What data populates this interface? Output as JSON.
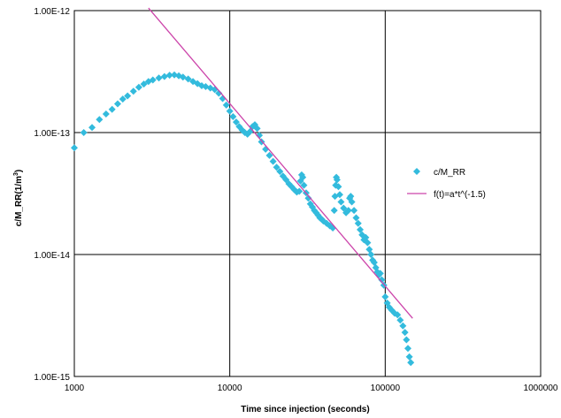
{
  "chart_data": {
    "type": "scatter",
    "xlabel": "Time since injection (seconds)",
    "ylabel": "c/M_RR(1/m",
    "ylabel_sup": "3",
    "ylabel_close": ")",
    "x_scale": "log",
    "y_scale": "log",
    "xlim": [
      1000,
      1000000
    ],
    "ylim": [
      1e-15,
      1e-12
    ],
    "x_tick_values": [
      1000,
      10000,
      100000,
      1000000
    ],
    "x_tick_labels": [
      "1000",
      "10000",
      "100000",
      "1000000"
    ],
    "y_tick_values": [
      1e-15,
      1e-14,
      1e-13,
      1e-12
    ],
    "y_tick_labels": [
      "1.00E-15",
      "1.00E-14",
      "1.00E-13",
      "1.00E-12"
    ],
    "grid": true,
    "legend_position": "right",
    "series": [
      {
        "name": "c/M_RR",
        "marker": "diamond",
        "color": "#33BBDD",
        "points": [
          [
            1000,
            7.5e-14
          ],
          [
            1150,
            1e-13
          ],
          [
            1300,
            1.1e-13
          ],
          [
            1450,
            1.28e-13
          ],
          [
            1600,
            1.42e-13
          ],
          [
            1750,
            1.55e-13
          ],
          [
            1900,
            1.72e-13
          ],
          [
            2050,
            1.88e-13
          ],
          [
            2200,
            2e-13
          ],
          [
            2400,
            2.18e-13
          ],
          [
            2600,
            2.35e-13
          ],
          [
            2800,
            2.5e-13
          ],
          [
            3000,
            2.62e-13
          ],
          [
            3200,
            2.7e-13
          ],
          [
            3500,
            2.8e-13
          ],
          [
            3800,
            2.88e-13
          ],
          [
            4100,
            2.95e-13
          ],
          [
            4400,
            2.97e-13
          ],
          [
            4700,
            2.92e-13
          ],
          [
            5000,
            2.85e-13
          ],
          [
            5400,
            2.75e-13
          ],
          [
            5800,
            2.62e-13
          ],
          [
            6200,
            2.52e-13
          ],
          [
            6600,
            2.42e-13
          ],
          [
            7000,
            2.38e-13
          ],
          [
            7500,
            2.32e-13
          ],
          [
            8000,
            2.25e-13
          ],
          [
            8500,
            2.1e-13
          ],
          [
            9000,
            1.9e-13
          ],
          [
            9500,
            1.68e-13
          ],
          [
            10000,
            1.5e-13
          ],
          [
            10500,
            1.35e-13
          ],
          [
            11000,
            1.22e-13
          ],
          [
            11500,
            1.12e-13
          ],
          [
            12000,
            1.05e-13
          ],
          [
            12500,
            1e-13
          ],
          [
            13000,
            9.7e-14
          ],
          [
            13500,
            1.02e-13
          ],
          [
            14000,
            1.12e-13
          ],
          [
            14500,
            1.16e-13
          ],
          [
            15000,
            1.08e-13
          ],
          [
            15500,
            9.5e-14
          ],
          [
            16000,
            8.4e-14
          ],
          [
            17000,
            7.3e-14
          ],
          [
            18000,
            6.5e-14
          ],
          [
            19000,
            5.8e-14
          ],
          [
            20000,
            5.2e-14
          ],
          [
            21000,
            4.8e-14
          ],
          [
            22000,
            4.4e-14
          ],
          [
            23000,
            4.1e-14
          ],
          [
            24000,
            3.8e-14
          ],
          [
            25000,
            3.6e-14
          ],
          [
            26000,
            3.4e-14
          ],
          [
            27000,
            3.25e-14
          ],
          [
            28000,
            3.3e-14
          ],
          [
            28500,
            4e-14
          ],
          [
            29000,
            4.5e-14
          ],
          [
            29500,
            4.3e-14
          ],
          [
            30000,
            3.7e-14
          ],
          [
            31000,
            3.2e-14
          ],
          [
            32000,
            2.9e-14
          ],
          [
            33000,
            2.6e-14
          ],
          [
            34000,
            2.45e-14
          ],
          [
            35000,
            2.3e-14
          ],
          [
            36000,
            2.2e-14
          ],
          [
            37000,
            2.1e-14
          ],
          [
            38000,
            2e-14
          ],
          [
            39000,
            1.95e-14
          ],
          [
            40000,
            1.88e-14
          ],
          [
            42000,
            1.8e-14
          ],
          [
            44000,
            1.72e-14
          ],
          [
            46000,
            1.65e-14
          ],
          [
            47000,
            2.3e-14
          ],
          [
            47500,
            3e-14
          ],
          [
            48000,
            3.7e-14
          ],
          [
            48500,
            4.3e-14
          ],
          [
            49000,
            4.1e-14
          ],
          [
            50000,
            3.6e-14
          ],
          [
            51000,
            3.1e-14
          ],
          [
            52000,
            2.7e-14
          ],
          [
            54000,
            2.4e-14
          ],
          [
            56000,
            2.2e-14
          ],
          [
            58000,
            2.3e-14
          ],
          [
            59000,
            2.9e-14
          ],
          [
            60000,
            3e-14
          ],
          [
            61000,
            2.7e-14
          ],
          [
            63000,
            2.3e-14
          ],
          [
            65000,
            2e-14
          ],
          [
            67000,
            1.8e-14
          ],
          [
            69000,
            1.6e-14
          ],
          [
            71000,
            1.45e-14
          ],
          [
            73000,
            1.32e-14
          ],
          [
            75000,
            1.38e-14
          ],
          [
            77000,
            1.25e-14
          ],
          [
            79000,
            1.1e-14
          ],
          [
            81000,
            1e-14
          ],
          [
            83000,
            9e-15
          ],
          [
            85000,
            8.6e-15
          ],
          [
            87000,
            7.8e-15
          ],
          [
            89000,
            7.2e-15
          ],
          [
            91000,
            6.8e-15
          ],
          [
            93000,
            7e-15
          ],
          [
            95000,
            6.2e-15
          ],
          [
            98000,
            5.6e-15
          ],
          [
            100000,
            4.5e-15
          ],
          [
            103000,
            4e-15
          ],
          [
            106000,
            3.7e-15
          ],
          [
            110000,
            3.5e-15
          ],
          [
            115000,
            3.3e-15
          ],
          [
            120000,
            3.2e-15
          ],
          [
            125000,
            2.9e-15
          ],
          [
            130000,
            2.6e-15
          ],
          [
            134000,
            2.3e-15
          ],
          [
            137000,
            2e-15
          ],
          [
            140000,
            1.7e-15
          ],
          [
            143000,
            1.45e-15
          ],
          [
            146000,
            1.3e-15
          ]
        ]
      },
      {
        "name": "f(t)=a*t^(-1.5)",
        "line": true,
        "color": "#CC44AA",
        "points": [
          [
            3000,
            1.05e-12
          ],
          [
            150000,
            3e-15
          ]
        ]
      }
    ]
  }
}
